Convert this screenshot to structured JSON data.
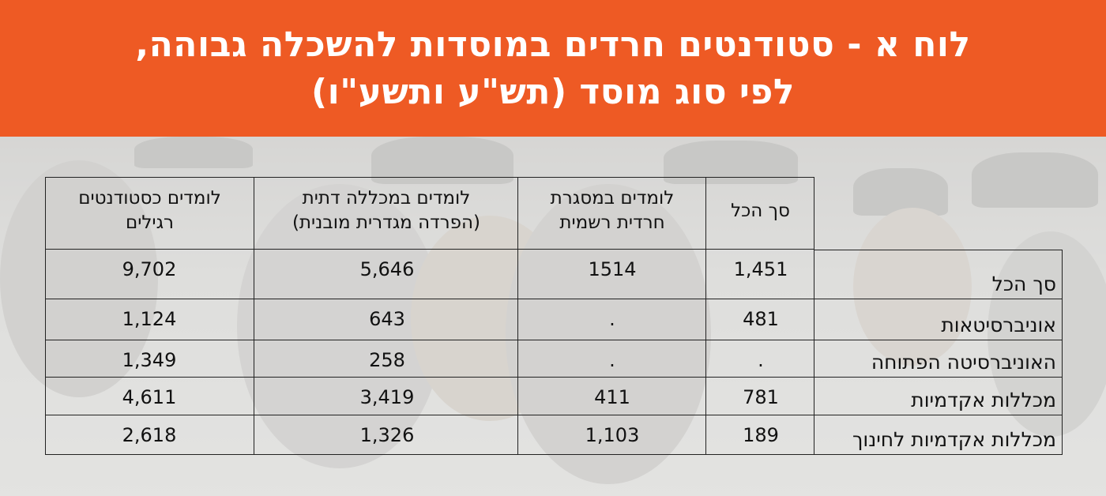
{
  "title": {
    "line1": "לוח א - סטודנטים חרדים במוסדות להשכלה גבוהה,",
    "line2": "לפי סוג מוסד (תש\"ע ותשע\"ו)"
  },
  "colors": {
    "banner": "#ee5a24",
    "text": "#111111",
    "border": "#222222"
  },
  "table": {
    "columns": [
      "סך הכל",
      "לומדים במסגרת חרדית רשמית",
      "לומדים במכללה דתית (הפרדה מגדרית מובנית)",
      "לומדים כסטודנטים רגילים"
    ],
    "columns_lines": [
      [
        "סך הכל"
      ],
      [
        "לומדים במסגרת",
        "חרדית רשמית"
      ],
      [
        "לומדים במכללה דתית",
        "(הפרדה מגדרית מובנית)"
      ],
      [
        "לומדים כסטודנטים",
        "רגילים"
      ]
    ],
    "rows": [
      {
        "label": "סך הכל",
        "values": [
          "9,702",
          "5,646",
          "1514",
          "1,451"
        ]
      },
      {
        "label": "אוניברסיטאות",
        "values": [
          "1,124",
          "643",
          ".",
          "481"
        ]
      },
      {
        "label": "האוניברסיטה הפתוחה",
        "values": [
          "1,349",
          "258",
          ".",
          "."
        ]
      },
      {
        "label": "מכללות אקדמיות",
        "values": [
          "4,611",
          "3,419",
          "411",
          "781"
        ]
      },
      {
        "label": "מכללות אקדמיות לחינוך",
        "values": [
          "2,618",
          "1,326",
          "1,103",
          "189"
        ]
      }
    ]
  }
}
